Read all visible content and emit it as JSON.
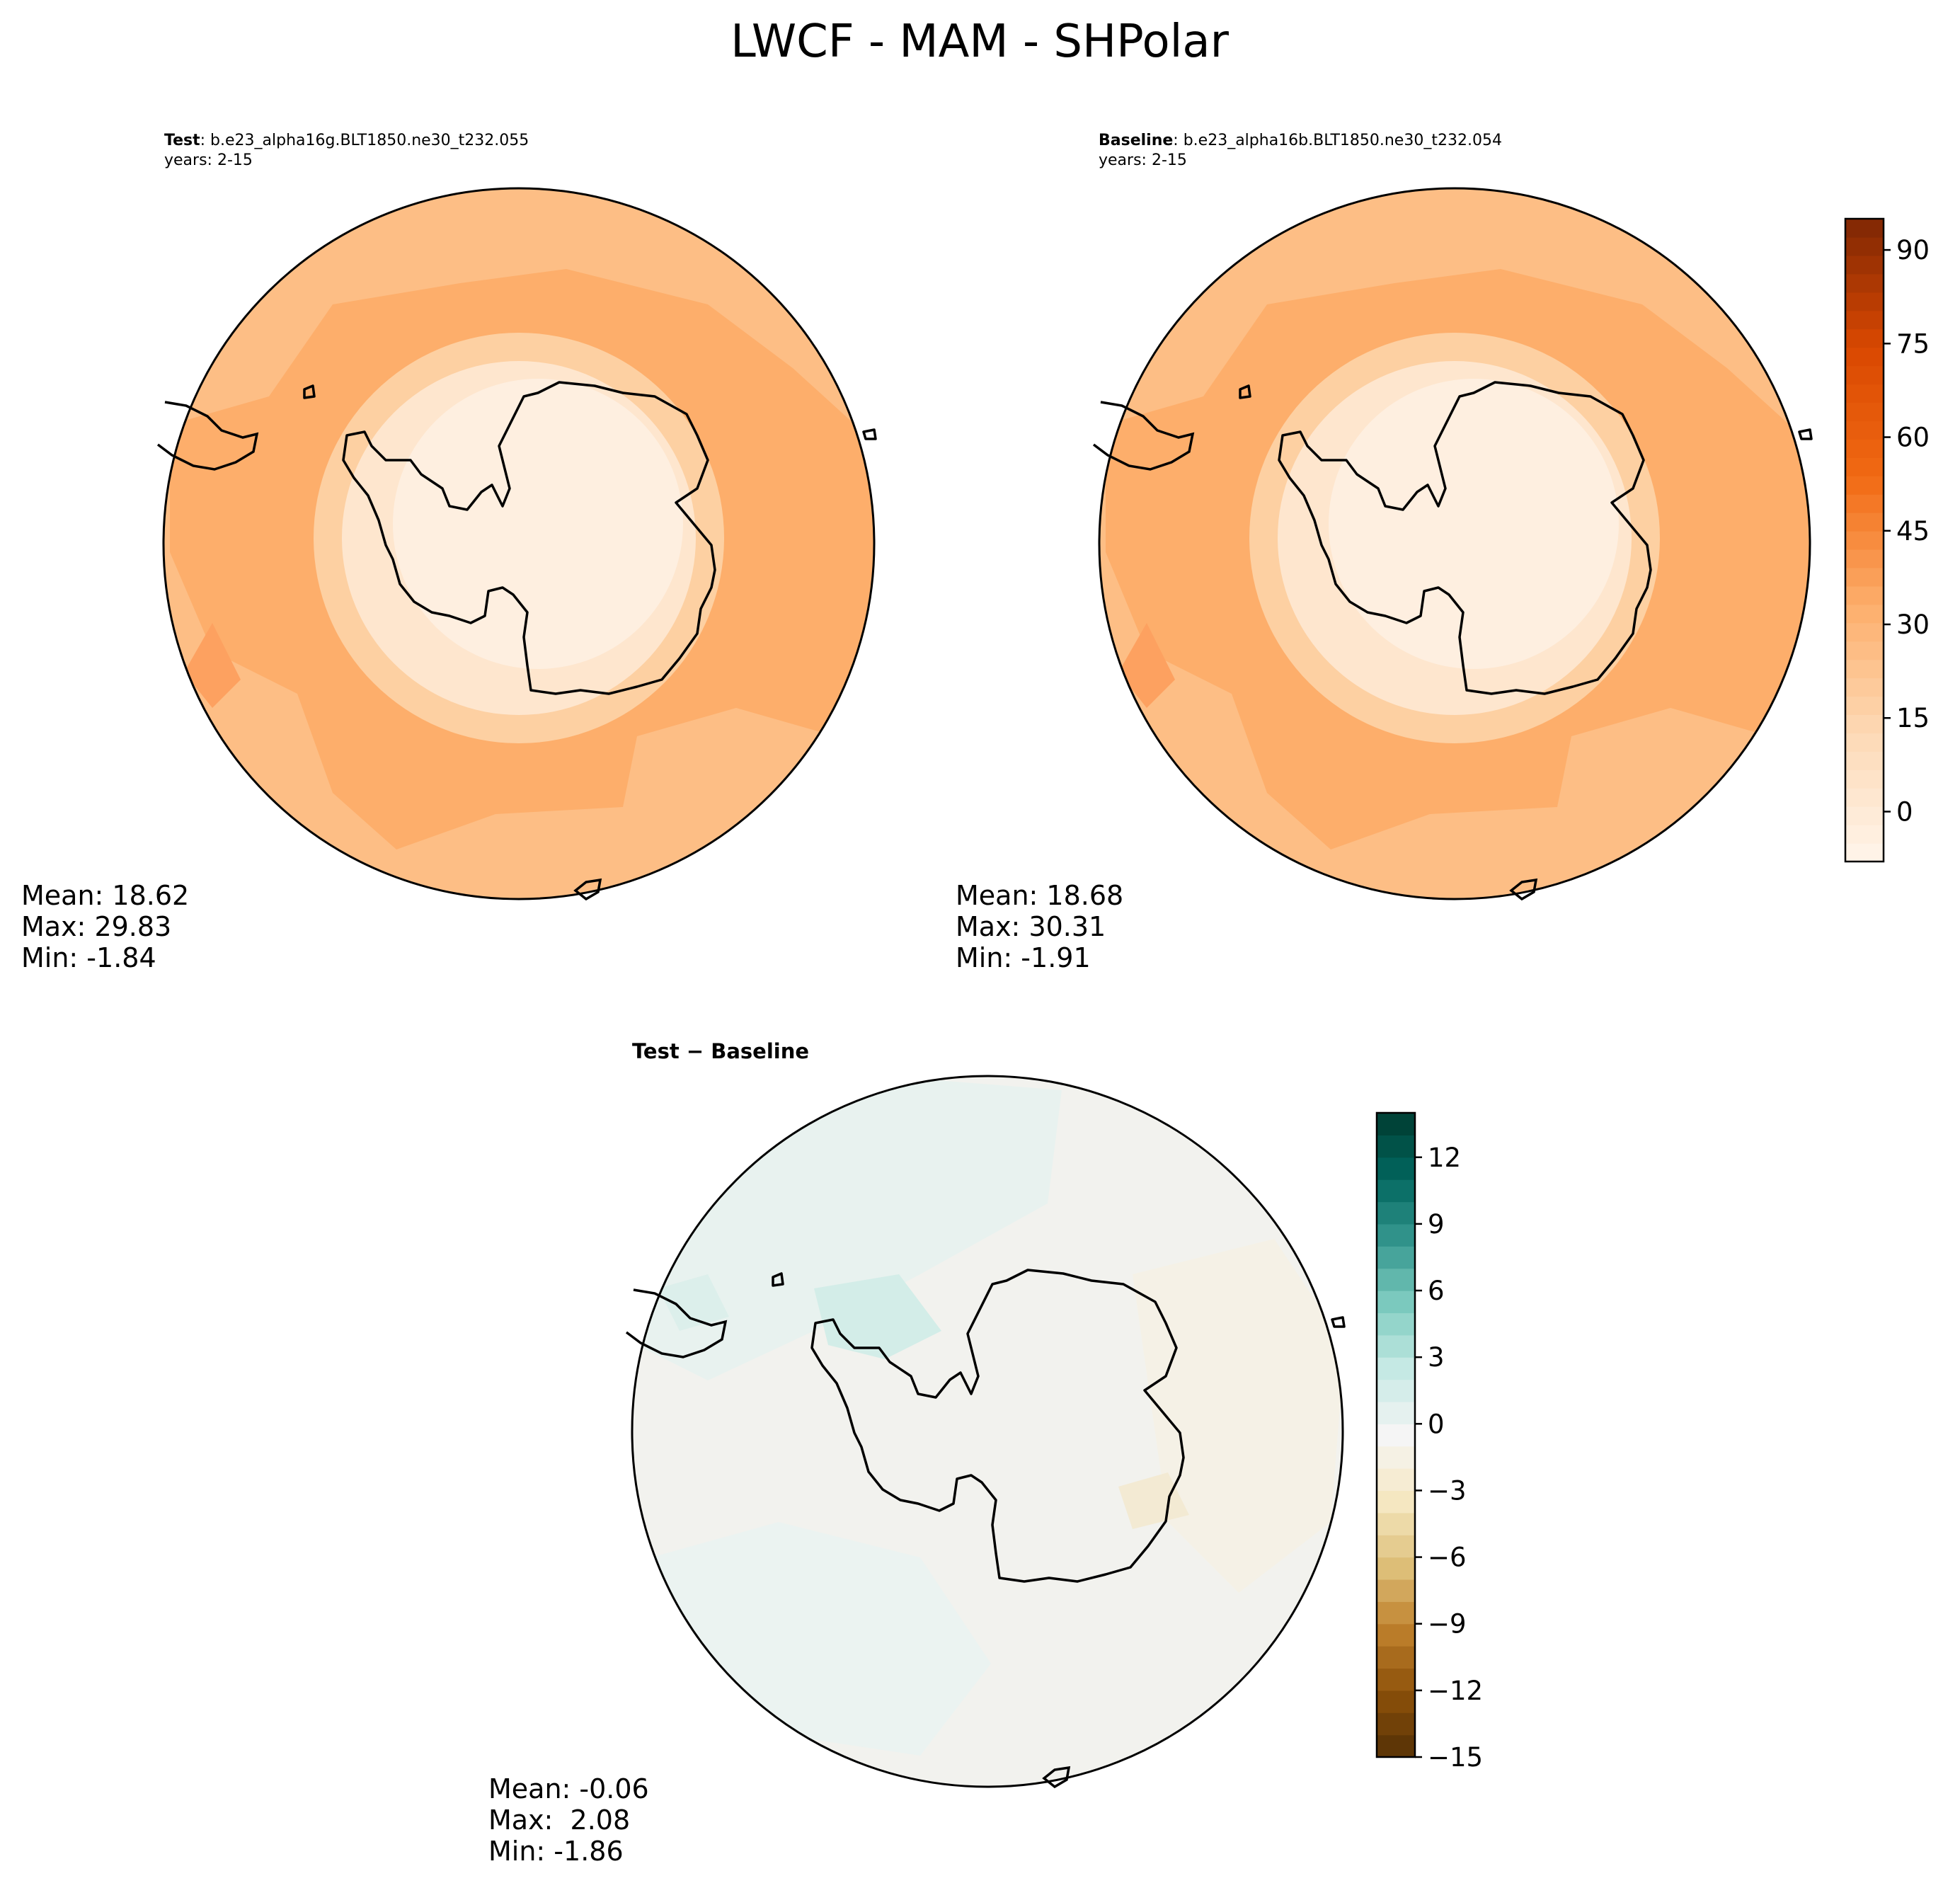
{
  "figure": {
    "title": "LWCF - MAM - SHPolar"
  },
  "panels": [
    {
      "label_bold": "Test",
      "label_rest": ": b.e23_alpha16g.BLT1850.ne30_t232.055",
      "years": "years: 2-15",
      "stats": [
        "Mean: 18.62",
        "Max: 29.83",
        "Min: -1.84"
      ]
    },
    {
      "label_bold": "Baseline",
      "label_rest": ": b.e23_alpha16b.BLT1850.ne30_t232.054",
      "years": "years: 2-15",
      "stats": [
        "Mean: 18.68",
        "Max: 30.31",
        "Min: -1.91"
      ]
    },
    {
      "label_bold": "Test − Baseline",
      "label_rest": "",
      "years": "",
      "stats": [
        "Mean: -0.06",
        "Max:  2.08",
        "Min: -1.86"
      ]
    }
  ],
  "chart_data": [
    {
      "type": "heatmap",
      "projection": "south-polar-stereographic",
      "panel": "test",
      "mean": 18.62,
      "max": 29.83,
      "min": -1.84,
      "colormap": "Oranges",
      "colorbar": null
    },
    {
      "type": "heatmap",
      "projection": "south-polar-stereographic",
      "panel": "baseline",
      "mean": 18.68,
      "max": 30.31,
      "min": -1.91,
      "colormap": "Oranges",
      "colorbar": {
        "range": [
          -8,
          95
        ],
        "ticks": [
          0,
          15,
          30,
          45,
          60,
          75,
          90
        ],
        "tick_labels": [
          "0",
          "15",
          "30",
          "45",
          "60",
          "75",
          "90"
        ],
        "levels": 35,
        "colors": [
          "#fff5eb",
          "#fdd9b5",
          "#fdae6b",
          "#f16913",
          "#d94801",
          "#7f2704"
        ]
      }
    },
    {
      "type": "heatmap",
      "projection": "south-polar-stereographic",
      "panel": "difference",
      "mean": -0.06,
      "max": 2.08,
      "min": -1.86,
      "colormap": "BrBG",
      "colorbar": {
        "range": [
          -15,
          14
        ],
        "ticks": [
          -15,
          -12,
          -9,
          -6,
          -3,
          0,
          3,
          6,
          9,
          12
        ],
        "tick_labels": [
          "−15",
          "−12",
          "−9",
          "−6",
          "−3",
          "0",
          "3",
          "6",
          "9",
          "12"
        ],
        "levels": 29,
        "colors": [
          "#543005",
          "#8c510a",
          "#bf812d",
          "#dfc27d",
          "#f6e8c3",
          "#f5f5f5",
          "#c7eae5",
          "#80cdc1",
          "#35978f",
          "#01665e",
          "#003c30"
        ]
      }
    }
  ]
}
